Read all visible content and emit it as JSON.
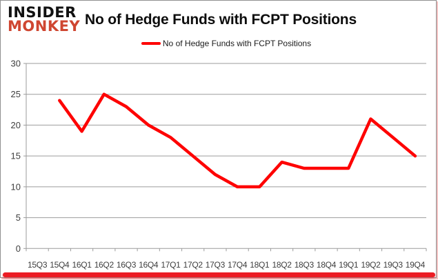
{
  "brand": {
    "line1": "INSIDER",
    "line2": "MONKEY"
  },
  "title": "No of Hedge Funds with FCPT Positions",
  "legend": {
    "label": "No of Hedge Funds with FCPT Positions"
  },
  "colors": {
    "series_red": "#fe0000",
    "logo_red": "#cf4631",
    "gridline": "#9b9b9b",
    "axis_text": "#3d3d3d",
    "accent_bar": "#ec1c24"
  },
  "chart_data": {
    "type": "line",
    "title": "No of Hedge Funds with FCPT Positions",
    "categories": [
      "15Q3",
      "15Q4",
      "16Q1",
      "16Q2",
      "16Q3",
      "16Q4",
      "17Q1",
      "17Q2",
      "17Q3",
      "17Q4",
      "18Q1",
      "18Q2",
      "18Q3",
      "18Q4",
      "19Q1",
      "19Q2",
      "19Q3",
      "19Q4"
    ],
    "series": [
      {
        "name": "No of Hedge Funds with FCPT Positions",
        "color": "#fe0000",
        "values": [
          null,
          24,
          19,
          25,
          23,
          20,
          18,
          15,
          12,
          10,
          10,
          14,
          13,
          13,
          13,
          21,
          18,
          15
        ]
      }
    ],
    "xlabel": "",
    "ylabel": "",
    "ylim": [
      0,
      30
    ],
    "ytick_interval": 5,
    "grid": "horizontal",
    "legend_position": "top-center"
  }
}
